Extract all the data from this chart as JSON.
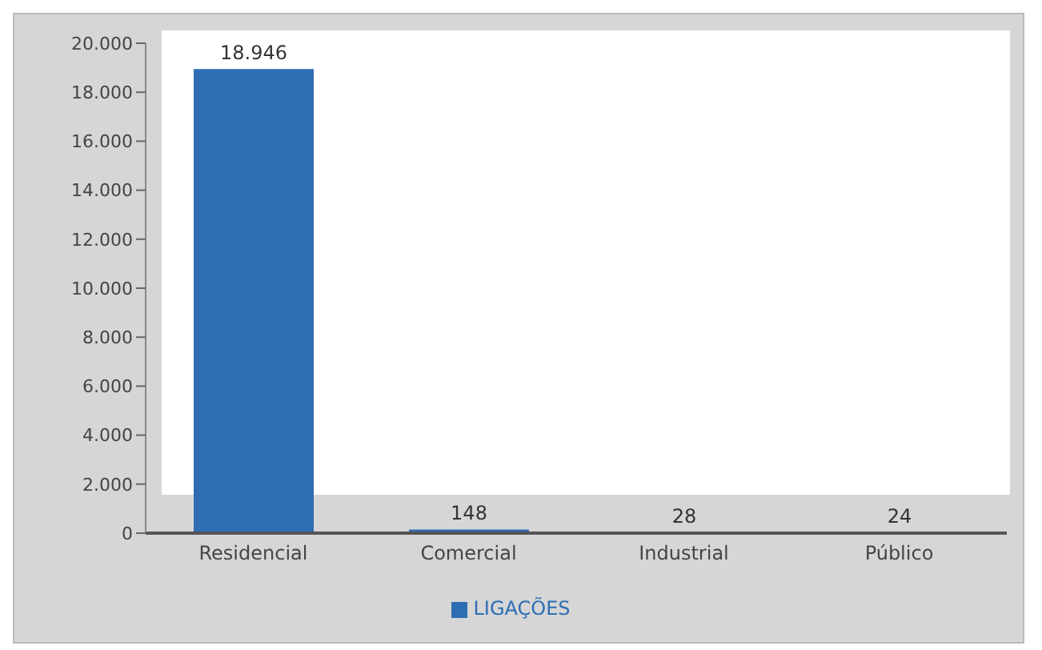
{
  "chart_data": {
    "type": "bar",
    "categories": [
      "Residencial",
      "Comercial",
      "Industrial",
      "Público"
    ],
    "series": [
      {
        "name": "LIGAÇÕES",
        "color": "#2e6db4",
        "values": [
          18946,
          148,
          28,
          24
        ]
      }
    ],
    "value_labels": [
      "18.946",
      "148",
      "28",
      "24"
    ],
    "ylim": [
      0,
      20000
    ],
    "yticks": [
      {
        "value": 0,
        "label": "0"
      },
      {
        "value": 2000,
        "label": "2.000"
      },
      {
        "value": 4000,
        "label": "4.000"
      },
      {
        "value": 6000,
        "label": "6.000"
      },
      {
        "value": 8000,
        "label": "8.000"
      },
      {
        "value": 10000,
        "label": "10.000"
      },
      {
        "value": 12000,
        "label": "12.000"
      },
      {
        "value": 14000,
        "label": "14.000"
      },
      {
        "value": 16000,
        "label": "16.000"
      },
      {
        "value": 18000,
        "label": "18.000"
      },
      {
        "value": 20000,
        "label": "20.000"
      }
    ],
    "grid": false,
    "legend": "bottom"
  }
}
